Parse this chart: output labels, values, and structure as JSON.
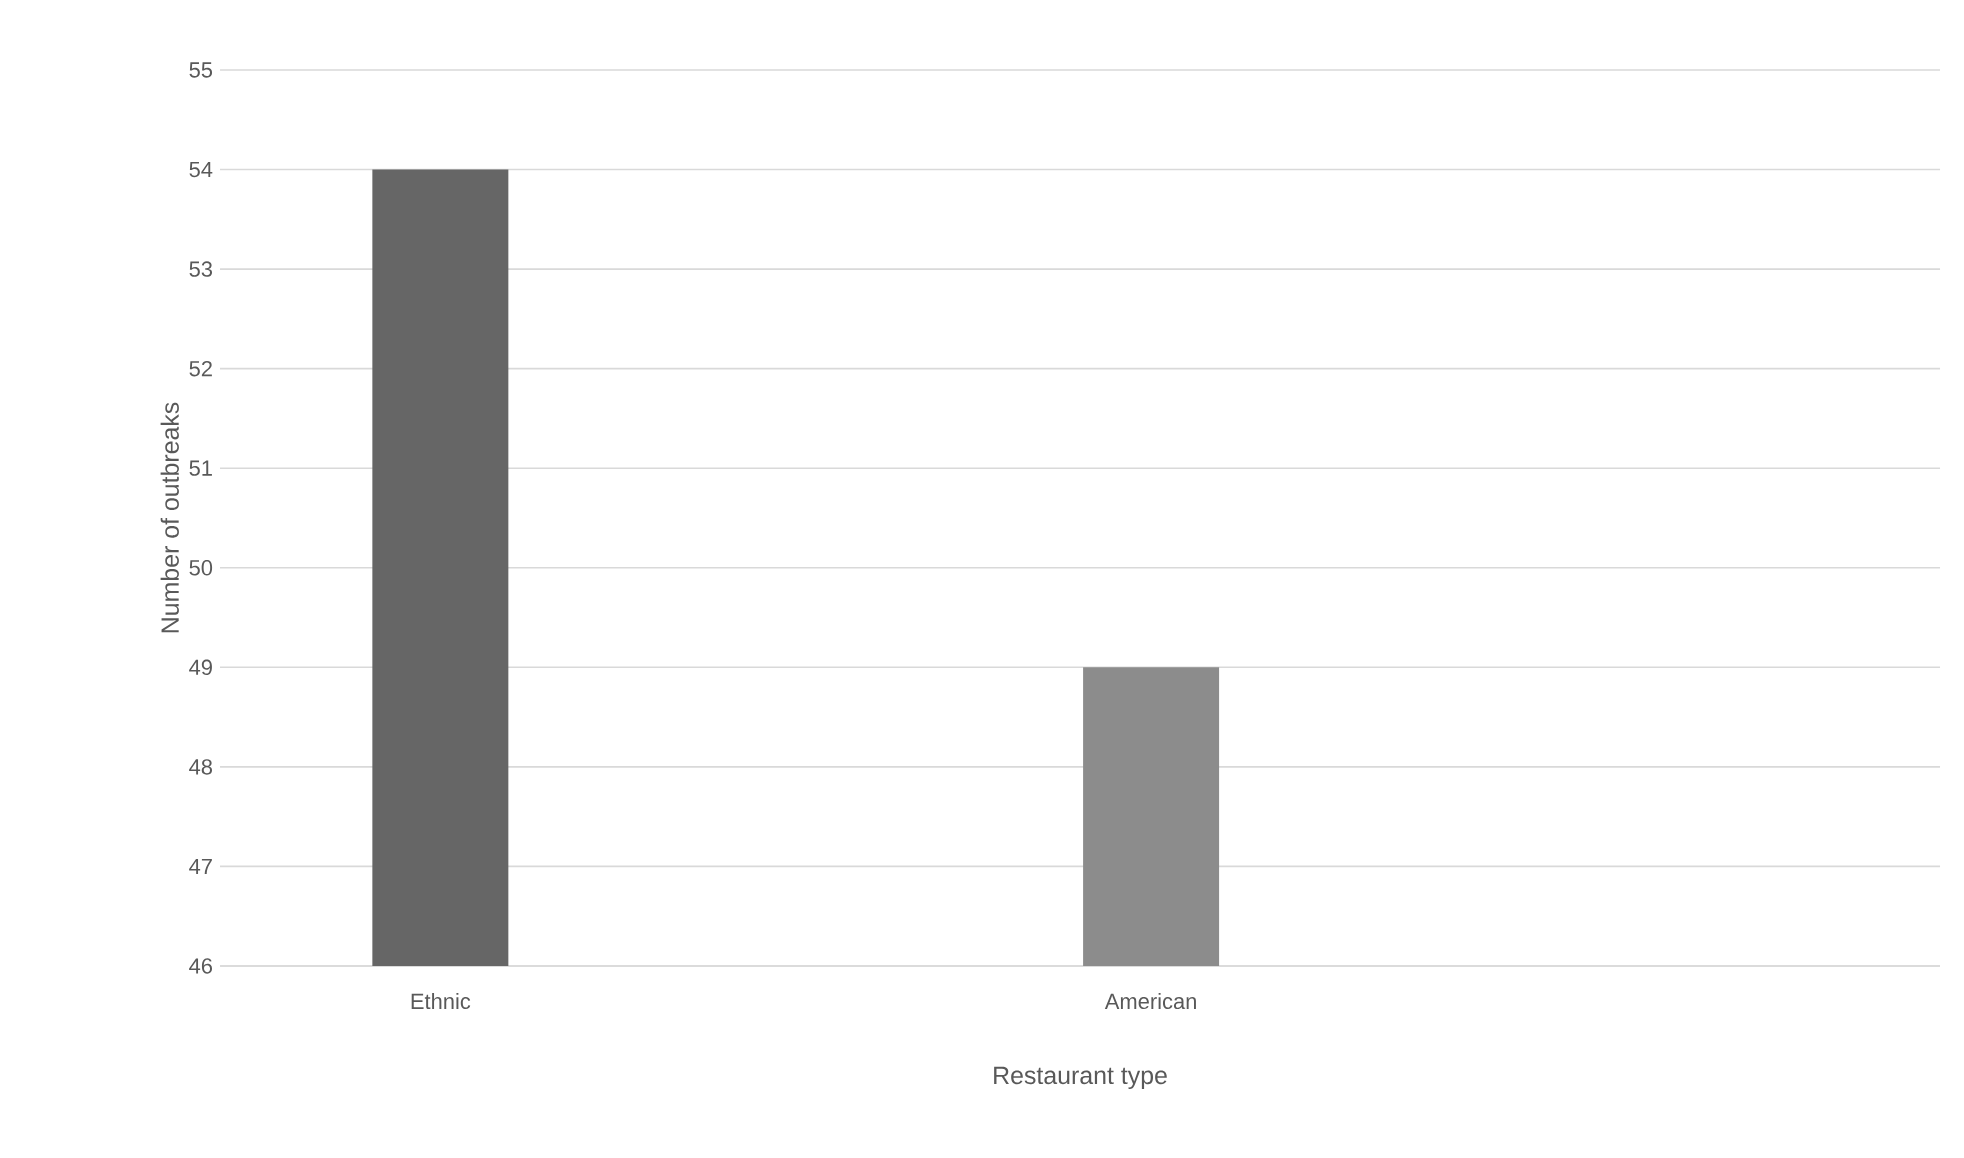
{
  "chart_data": {
    "type": "bar",
    "xlabel": "Restaurant type",
    "ylabel": "Number of outbreaks",
    "categories": [
      "Ethnic",
      "American"
    ],
    "values": [
      54,
      49
    ],
    "colors": [
      "#666666",
      "#8c8c8c"
    ],
    "ylim": [
      46,
      55
    ],
    "yticks": [
      46,
      47,
      48,
      49,
      50,
      51,
      52,
      53,
      54,
      55
    ],
    "grid": "y"
  }
}
